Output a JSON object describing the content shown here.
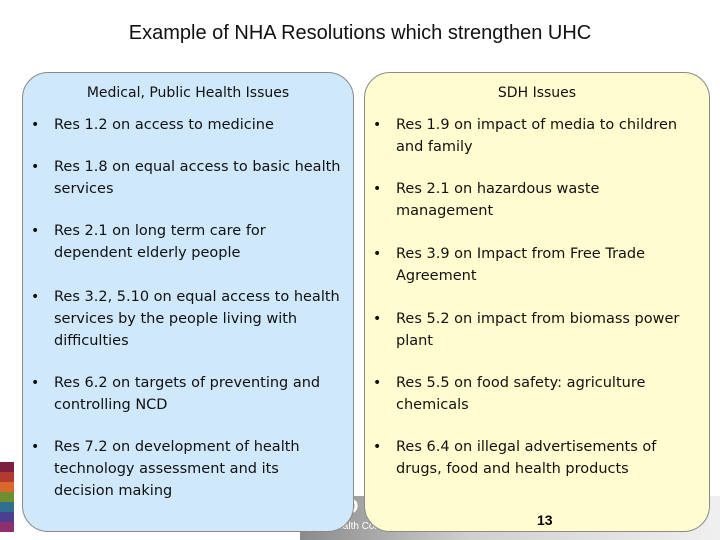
{
  "slide": {
    "title": "Example of NHA Resolutions which strengthen UHC",
    "left_panel": {
      "heading": "Medical, Public Health Issues",
      "items": [
        "Res 1.2 on access to medicine",
        "Res 1.8 on equal access to basic health services",
        "Res 2.1 on long term care for dependent elderly people",
        "Res 3.2, 5.10 on equal access to health services by the people living with difficulties",
        "Res 6.2 on targets of preventing and controlling NCD",
        "Res 7.2 on development of health technology assessment and its decision making"
      ]
    },
    "right_panel": {
      "heading": "SDH Issues",
      "items": [
        "Res 1.9 on impact of media to children and family",
        "Res 2.1 on hazardous waste management",
        "Res 3.9 on Impact from Free Trade Agreement",
        "Res 5.2 on impact from biomass power plant",
        "Res 5.5 on food safety: agriculture chemicals",
        "Res 6.4 on  illegal advertisements of drugs, food and health products"
      ]
    },
    "page_number": "13",
    "footer": {
      "logo_text": "TO",
      "subtitle": "Health Comm"
    },
    "colors": {
      "left_panel_bg": "#cfe8fb",
      "right_panel_bg": "#fffdcf",
      "strip": [
        "#7a1f3d",
        "#b23a2e",
        "#d9682a",
        "#6e8f2f",
        "#2f6f8f",
        "#4a3f8f",
        "#8f2f6f"
      ]
    }
  }
}
